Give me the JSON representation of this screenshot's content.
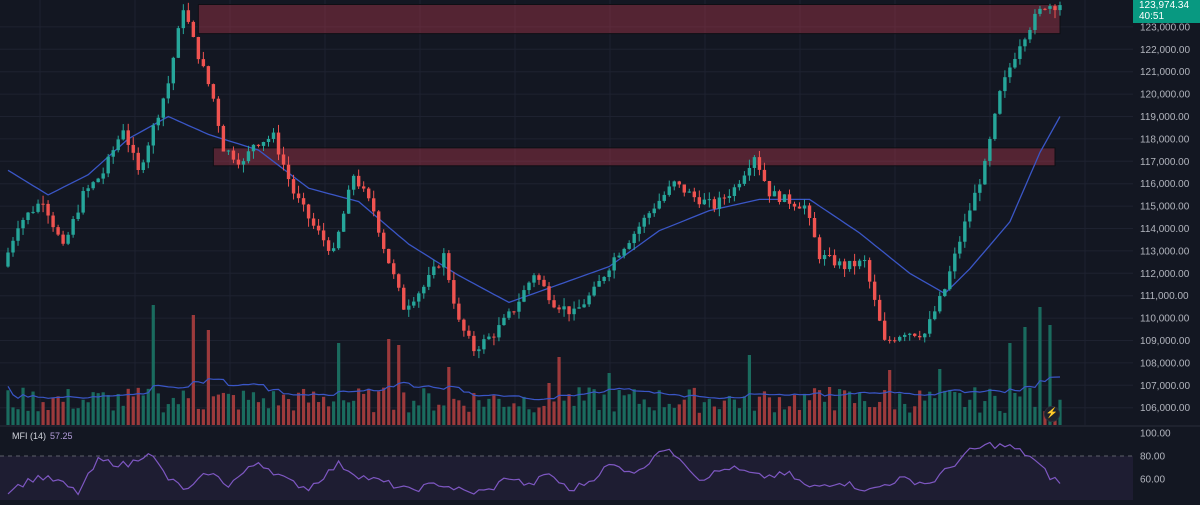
{
  "chart_data": [
    {
      "type": "candlestick",
      "title": "",
      "instrument_hint": "BTC price chart",
      "price_axis_labels": [
        "123,000.00",
        "122,000.00",
        "121,000.00",
        "120,000.00",
        "119,000.00",
        "118,000.00",
        "117,000.00",
        "116,000.00",
        "115,000.00",
        "114,000.00",
        "113,000.00",
        "112,000.00",
        "111,000.00",
        "110,000.00",
        "109,000.00",
        "108,000.00",
        "107,000.00",
        "106,000.00"
      ],
      "ylim": [
        105700,
        124300
      ],
      "last_price": "123,974.34",
      "countdown": "40:51",
      "grid": true,
      "colors": {
        "up": "#26a69a",
        "down": "#ef5350",
        "background": "#131722",
        "ma": "#3a56c6",
        "zone": "#a4364a",
        "badge": "#089981"
      },
      "anchors": [
        [
          0,
          112300
        ],
        [
          3,
          114200
        ],
        [
          8,
          115300
        ],
        [
          12,
          113100
        ],
        [
          16,
          115500
        ],
        [
          20,
          116500
        ],
        [
          24,
          118500
        ],
        [
          27,
          116500
        ],
        [
          33,
          120500
        ],
        [
          36,
          123900
        ],
        [
          38,
          122400
        ],
        [
          42,
          119800
        ],
        [
          44,
          117600
        ],
        [
          48,
          116900
        ],
        [
          50,
          117800
        ],
        [
          54,
          118100
        ],
        [
          58,
          115600
        ],
        [
          62,
          114100
        ],
        [
          66,
          112900
        ],
        [
          70,
          116400
        ],
        [
          74,
          114800
        ],
        [
          76,
          113200
        ],
        [
          80,
          110500
        ],
        [
          84,
          111400
        ],
        [
          88,
          112800
        ],
        [
          91,
          109800
        ],
        [
          94,
          108600
        ],
        [
          98,
          109300
        ],
        [
          102,
          110400
        ],
        [
          106,
          112000
        ],
        [
          110,
          110700
        ],
        [
          114,
          110200
        ],
        [
          118,
          111200
        ],
        [
          122,
          112700
        ],
        [
          126,
          113800
        ],
        [
          130,
          115000
        ],
        [
          134,
          116000
        ],
        [
          138,
          115400
        ],
        [
          142,
          115000
        ],
        [
          146,
          115800
        ],
        [
          150,
          117300
        ],
        [
          153,
          115600
        ],
        [
          156,
          115300
        ],
        [
          160,
          115000
        ],
        [
          163,
          112800
        ],
        [
          168,
          112300
        ],
        [
          172,
          112500
        ],
        [
          176,
          108900
        ],
        [
          180,
          109400
        ],
        [
          184,
          109300
        ],
        [
          188,
          111300
        ],
        [
          192,
          114200
        ],
        [
          196,
          116800
        ],
        [
          199,
          120000
        ],
        [
          201,
          121200
        ],
        [
          203,
          122300
        ],
        [
          206,
          123400
        ],
        [
          208,
          123974
        ]
      ],
      "moving_average_anchors": [
        [
          0,
          116600
        ],
        [
          8,
          115500
        ],
        [
          16,
          116400
        ],
        [
          24,
          118000
        ],
        [
          32,
          119000
        ],
        [
          40,
          118200
        ],
        [
          50,
          117500
        ],
        [
          60,
          115800
        ],
        [
          70,
          115200
        ],
        [
          80,
          113300
        ],
        [
          90,
          111900
        ],
        [
          100,
          110700
        ],
        [
          110,
          111500
        ],
        [
          120,
          112300
        ],
        [
          130,
          113900
        ],
        [
          140,
          114800
        ],
        [
          150,
          115300
        ],
        [
          160,
          115300
        ],
        [
          170,
          113800
        ],
        [
          180,
          112000
        ],
        [
          187,
          111100
        ],
        [
          192,
          112200
        ],
        [
          200,
          114300
        ],
        [
          206,
          117400
        ],
        [
          210,
          119000
        ]
      ],
      "resistance_zones": [
        {
          "y_low": 122700,
          "y_high": 124000,
          "x_start": 38,
          "x_end": 210
        },
        {
          "y_low": 116800,
          "y_high": 117600,
          "x_start": 41,
          "x_end": 209
        }
      ]
    },
    {
      "type": "bar",
      "name": "Volume",
      "spikes": [
        [
          29,
          120
        ],
        [
          37,
          110
        ],
        [
          40,
          95
        ],
        [
          66,
          82
        ],
        [
          76,
          86
        ],
        [
          78,
          80
        ],
        [
          88,
          58
        ],
        [
          108,
          42
        ],
        [
          110,
          68
        ],
        [
          120,
          52
        ],
        [
          148,
          70
        ],
        [
          164,
          38
        ],
        [
          176,
          55
        ],
        [
          186,
          56
        ],
        [
          200,
          82
        ],
        [
          203,
          98
        ],
        [
          206,
          118
        ],
        [
          208,
          100
        ]
      ],
      "moving_average": true,
      "colors": {
        "up": "#1a6b5e",
        "down": "#9c3a3c",
        "ma": "#3a56c6"
      }
    },
    {
      "type": "line",
      "title": "MFI (14)",
      "last_value": "57.25",
      "y_tick_labels": [
        "100.00",
        "80.00",
        "60.00"
      ],
      "ylim": [
        40,
        102
      ],
      "band": [
        20,
        80
      ],
      "anchors": [
        [
          0,
          50
        ],
        [
          6,
          62
        ],
        [
          10,
          58
        ],
        [
          14,
          48
        ],
        [
          18,
          76
        ],
        [
          24,
          72
        ],
        [
          28,
          84
        ],
        [
          32,
          60
        ],
        [
          36,
          50
        ],
        [
          40,
          66
        ],
        [
          44,
          55
        ],
        [
          50,
          75
        ],
        [
          56,
          58
        ],
        [
          60,
          52
        ],
        [
          66,
          73
        ],
        [
          70,
          63
        ],
        [
          76,
          56
        ],
        [
          80,
          50
        ],
        [
          86,
          56
        ],
        [
          92,
          48
        ],
        [
          96,
          50
        ],
        [
          100,
          62
        ],
        [
          104,
          54
        ],
        [
          108,
          65
        ],
        [
          112,
          50
        ],
        [
          116,
          58
        ],
        [
          120,
          72
        ],
        [
          126,
          66
        ],
        [
          130,
          86
        ],
        [
          134,
          80
        ],
        [
          138,
          60
        ],
        [
          144,
          70
        ],
        [
          150,
          62
        ],
        [
          156,
          64
        ],
        [
          160,
          52
        ],
        [
          166,
          58
        ],
        [
          172,
          50
        ],
        [
          178,
          60
        ],
        [
          184,
          56
        ],
        [
          188,
          70
        ],
        [
          192,
          84
        ],
        [
          196,
          90
        ],
        [
          200,
          88
        ],
        [
          204,
          80
        ],
        [
          208,
          62
        ],
        [
          210,
          57
        ]
      ],
      "color": "#7e57c2"
    }
  ],
  "ui": {
    "price_badge_value": "123,974.34",
    "price_badge_timer": "40:51",
    "mfi_label": "MFI (14)",
    "mfi_value": "57.25"
  }
}
